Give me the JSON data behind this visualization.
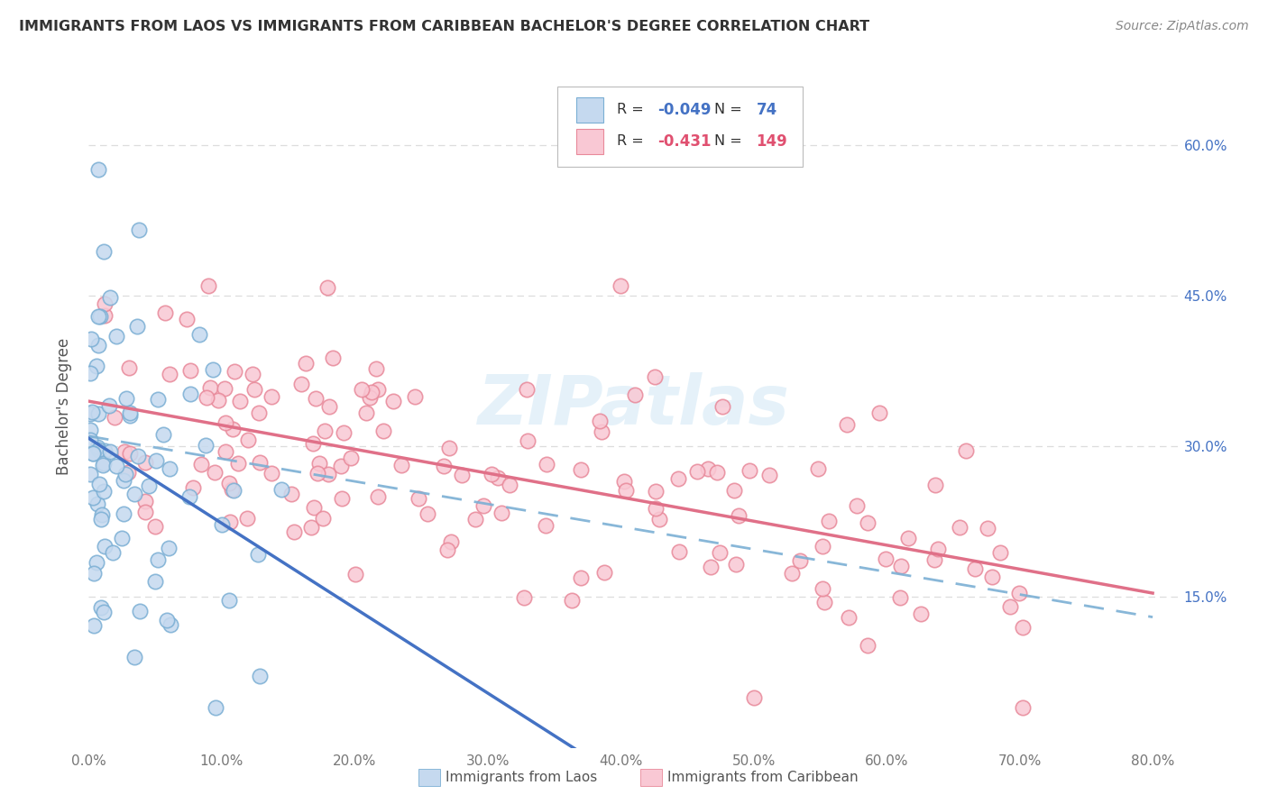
{
  "title": "IMMIGRANTS FROM LAOS VS IMMIGRANTS FROM CARIBBEAN BACHELOR'S DEGREE CORRELATION CHART",
  "source": "Source: ZipAtlas.com",
  "ylabel": "Bachelor's Degree",
  "ytick_vals": [
    0.15,
    0.3,
    0.45,
    0.6
  ],
  "ytick_labels": [
    "15.0%",
    "30.0%",
    "45.0%",
    "60.0%"
  ],
  "xtick_vals": [
    0.0,
    0.1,
    0.2,
    0.3,
    0.4,
    0.5,
    0.6,
    0.7,
    0.8
  ],
  "xtick_labels": [
    "0.0%",
    "10.0%",
    "20.0%",
    "30.0%",
    "40.0%",
    "50.0%",
    "60.0%",
    "70.0%",
    "80.0%"
  ],
  "xlim": [
    0.0,
    0.82
  ],
  "ylim": [
    0.0,
    0.68
  ],
  "legend_laos_r": "-0.049",
  "legend_laos_n": "74",
  "legend_carib_r": "-0.431",
  "legend_carib_n": "149",
  "legend_label_laos": "Immigrants from Laos",
  "legend_label_carib": "Immigrants from Caribbean",
  "color_laos_fill": "#c5d9ef",
  "color_laos_edge": "#7bafd4",
  "color_carib_fill": "#f9c8d4",
  "color_carib_edge": "#e8899a",
  "color_laos_line": "#4472c4",
  "color_laos_dashed": "#7bafd4",
  "color_carib_line": "#e07088",
  "color_text_blue": "#4472c4",
  "color_text_pink": "#e05070",
  "background_color": "#ffffff",
  "watermark": "ZIPatlas",
  "grid_color": "#dddddd",
  "title_color": "#333333",
  "source_color": "#888888",
  "ylabel_color": "#555555",
  "tick_label_color": "#777777"
}
